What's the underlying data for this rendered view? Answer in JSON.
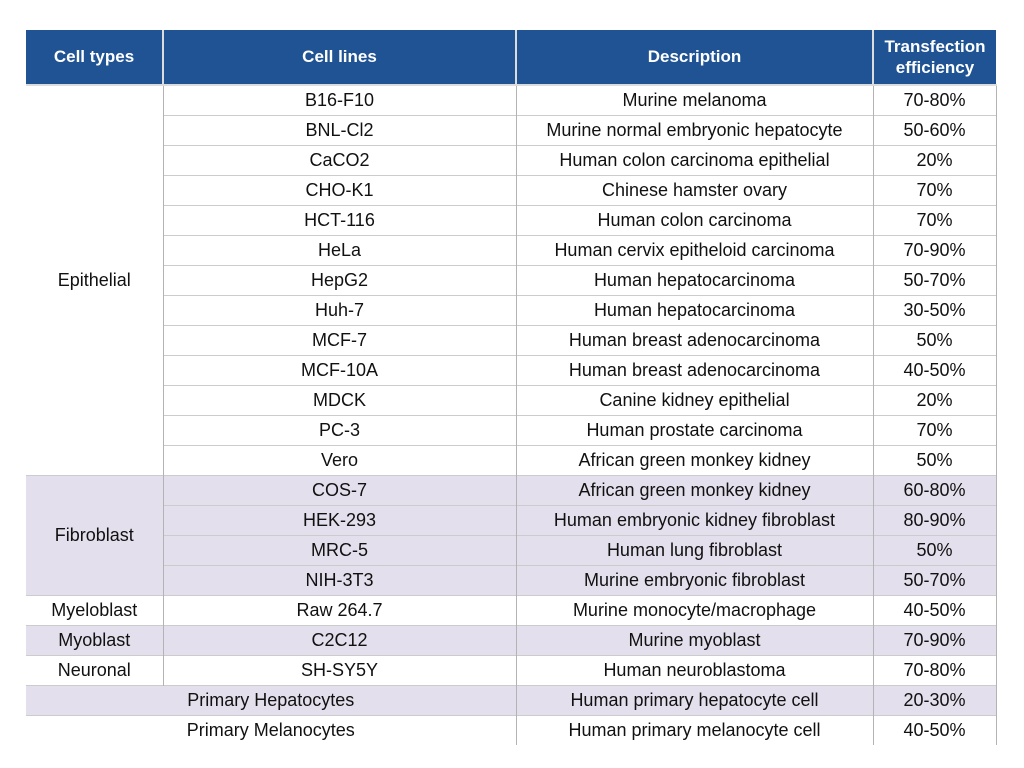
{
  "colors": {
    "header_bg": "#1f5394",
    "header_text": "#ffffff",
    "shaded_row": "#e4dfec",
    "row_line": "#cccccc",
    "col_line": "#b3b3b3"
  },
  "table": {
    "headers": [
      "Cell types",
      "Cell lines",
      "Description",
      "Transfection efficiency"
    ],
    "groups": [
      {
        "cell_type": "Epithelial",
        "shaded": false,
        "rows": [
          {
            "cell_line": "B16-F10",
            "description": "Murine melanoma",
            "efficiency": "70-80%"
          },
          {
            "cell_line": "BNL-Cl2",
            "description": "Murine normal embryonic hepatocyte",
            "efficiency": "50-60%"
          },
          {
            "cell_line": "CaCO2",
            "description": "Human colon carcinoma epithelial",
            "efficiency": "20%"
          },
          {
            "cell_line": "CHO-K1",
            "description": "Chinese hamster ovary",
            "efficiency": "70%"
          },
          {
            "cell_line": "HCT-116",
            "description": "Human colon carcinoma",
            "efficiency": "70%"
          },
          {
            "cell_line": "HeLa",
            "description": "Human cervix epitheloid carcinoma",
            "efficiency": "70-90%"
          },
          {
            "cell_line": "HepG2",
            "description": "Human hepatocarcinoma",
            "efficiency": "50-70%"
          },
          {
            "cell_line": "Huh-7",
            "description": "Human hepatocarcinoma",
            "efficiency": "30-50%"
          },
          {
            "cell_line": "MCF-7",
            "description": "Human breast adenocarcinoma",
            "efficiency": "50%"
          },
          {
            "cell_line": "MCF-10A",
            "description": "Human breast adenocarcinoma",
            "efficiency": "40-50%"
          },
          {
            "cell_line": "MDCK",
            "description": "Canine kidney epithelial",
            "efficiency": "20%"
          },
          {
            "cell_line": "PC-3",
            "description": "Human prostate carcinoma",
            "efficiency": "70%"
          },
          {
            "cell_line": "Vero",
            "description": "African green monkey kidney",
            "efficiency": "50%"
          }
        ]
      },
      {
        "cell_type": "Fibroblast",
        "shaded": true,
        "rows": [
          {
            "cell_line": "COS-7",
            "description": "African green monkey kidney",
            "efficiency": "60-80%"
          },
          {
            "cell_line": "HEK-293",
            "description": "Human embryonic kidney fibroblast",
            "efficiency": "80-90%"
          },
          {
            "cell_line": "MRC-5",
            "description": "Human lung fibroblast",
            "efficiency": "50%"
          },
          {
            "cell_line": "NIH-3T3",
            "description": "Murine embryonic fibroblast",
            "efficiency": "50-70%"
          }
        ]
      },
      {
        "cell_type": "Myeloblast",
        "shaded": false,
        "rows": [
          {
            "cell_line": "Raw 264.7",
            "description": "Murine monocyte/macrophage",
            "efficiency": "40-50%"
          }
        ]
      },
      {
        "cell_type": "Myoblast",
        "shaded": true,
        "rows": [
          {
            "cell_line": "C2C12",
            "description": "Murine myoblast",
            "efficiency": "70-90%"
          }
        ]
      },
      {
        "cell_type": "Neuronal",
        "shaded": false,
        "rows": [
          {
            "cell_line": "SH-SY5Y",
            "description": "Human neuroblastoma",
            "efficiency": "70-80%"
          }
        ]
      }
    ],
    "merged_rows": [
      {
        "label": "Primary Hepatocytes",
        "description": "Human primary hepatocyte cell",
        "efficiency": "20-30%",
        "shaded": true
      },
      {
        "label": "Primary Melanocytes",
        "description": "Human primary melanocyte cell",
        "efficiency": "40-50%",
        "shaded": false
      }
    ]
  }
}
